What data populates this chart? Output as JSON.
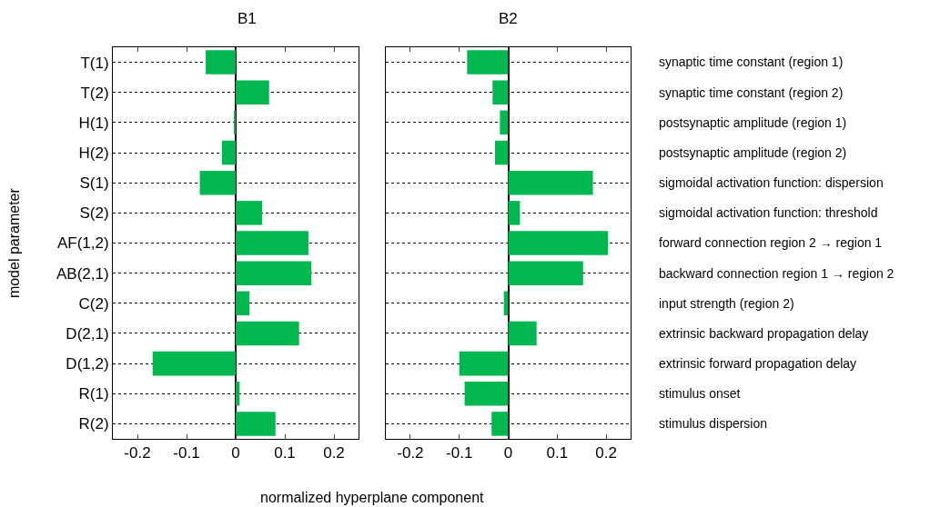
{
  "chart_data": [
    {
      "type": "bar",
      "orientation": "horizontal",
      "title": "B1",
      "xlabel": "normalized hyperplane component",
      "ylabel": "model parameter",
      "categories": [
        "T(1)",
        "T(2)",
        "H(1)",
        "H(2)",
        "S(1)",
        "S(2)",
        "AF(1,2)",
        "AB(2,1)",
        "C(2)",
        "D(2,1)",
        "D(1,2)",
        "R(1)",
        "R(2)"
      ],
      "values": [
        -0.061,
        0.068,
        -0.002,
        -0.028,
        -0.073,
        0.054,
        0.148,
        0.154,
        0.028,
        0.129,
        -0.169,
        0.008,
        0.081
      ],
      "color": "#00b84f",
      "xlim": [
        -0.25,
        0.25
      ],
      "xticks": [
        -0.2,
        -0.1,
        0,
        0.1,
        0.2
      ],
      "grid": "y"
    },
    {
      "type": "bar",
      "orientation": "horizontal",
      "title": "B2",
      "categories": [
        null,
        null,
        null,
        null,
        null,
        null,
        null,
        null,
        null,
        null,
        null,
        null,
        null
      ],
      "y2_categories": [
        "synaptic time constant (region 1)",
        "synaptic time constant (region 2)",
        "postsynaptic amplitude (region 1)",
        "postsynaptic amplitude (region 2)",
        "sigmoidal activation function: dispersion",
        "sigmoidal activation function: threshold",
        "forward connection region 2 → region 1",
        "backward connection region 1 → region 2",
        "input strength (region 2)",
        "extrinsic backward propagation delay",
        "extrinsic forward propagation delay",
        "stimulus onset",
        "stimulus dispersion"
      ],
      "values": [
        -0.084,
        -0.032,
        -0.017,
        -0.027,
        0.173,
        0.024,
        0.204,
        0.153,
        -0.009,
        0.058,
        -0.1,
        -0.089,
        -0.034
      ],
      "color": "#00b84f",
      "xlim": [
        -0.25,
        0.25
      ],
      "xticks": [
        -0.2,
        -0.1,
        0,
        0.1,
        0.2
      ],
      "grid": "y",
      "tick_labels": "x"
    }
  ]
}
